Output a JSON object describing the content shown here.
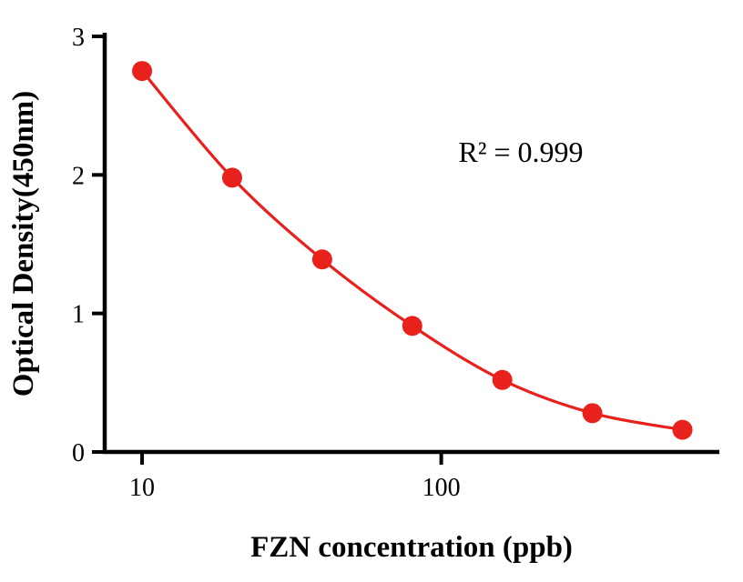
{
  "figure": {
    "background": "#ffffff"
  },
  "chart_data": {
    "type": "scatter",
    "x": [
      10,
      20,
      40,
      80,
      160,
      320,
      640
    ],
    "y": [
      2.75,
      1.98,
      1.39,
      0.91,
      0.52,
      0.28,
      0.16
    ],
    "xlabel": "FZN concentration (ppb)",
    "ylabel": "Optical Density(450nm)",
    "annotation": "R² = 0.999",
    "x_scale": "log",
    "x_ticks": [
      10,
      100
    ],
    "y_ticks": [
      0,
      1,
      2,
      3
    ],
    "xlim": [
      7.5,
      850
    ],
    "ylim": [
      0,
      3
    ],
    "grid": false,
    "legend": false,
    "line": true,
    "line_color": "#e8211d",
    "marker_color": "#e8211d",
    "axis_color": "#000000"
  }
}
